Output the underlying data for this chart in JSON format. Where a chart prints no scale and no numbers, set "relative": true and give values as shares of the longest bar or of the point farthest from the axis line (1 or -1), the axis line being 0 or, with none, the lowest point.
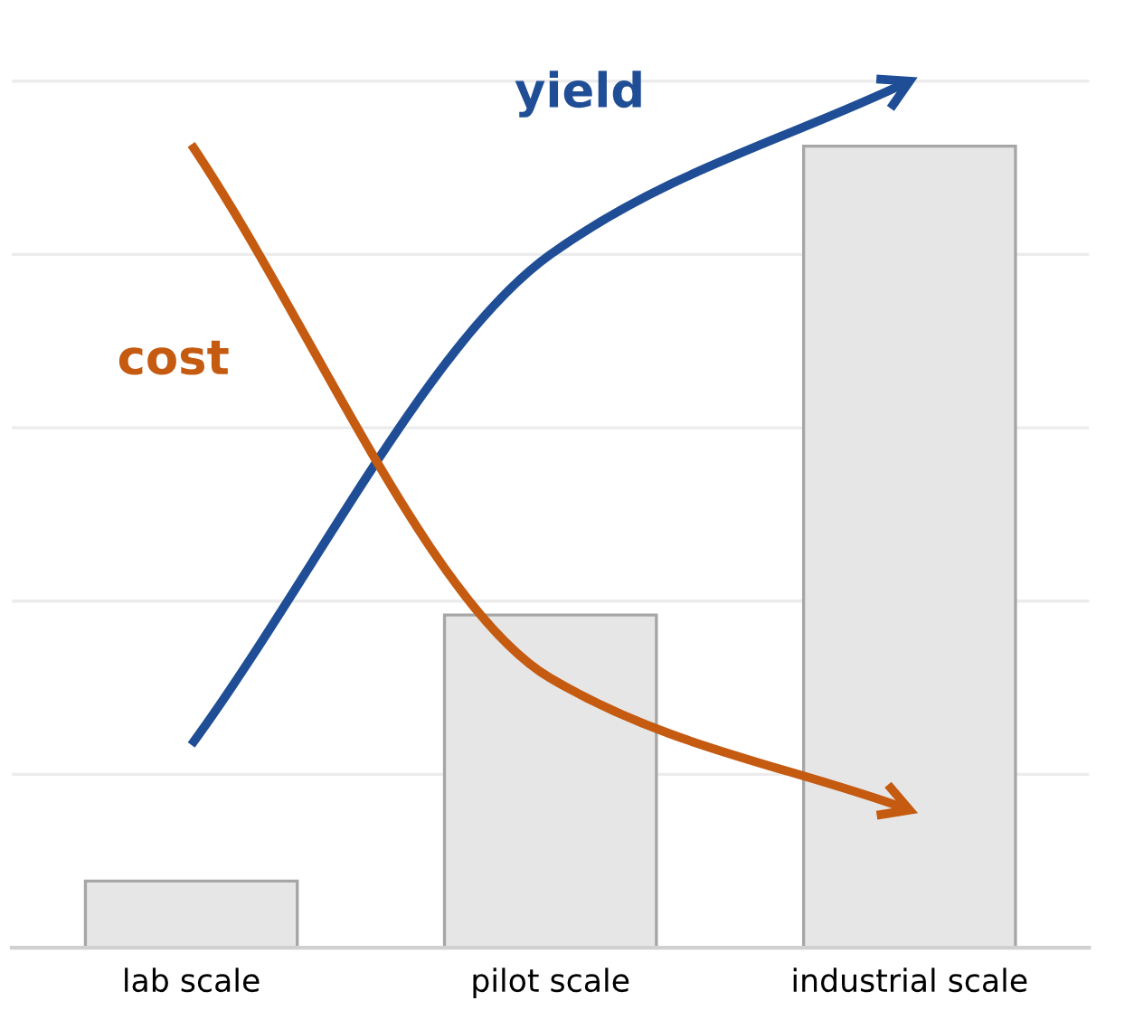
{
  "chart_data": {
    "type": "bar",
    "relative": true,
    "grid": "y",
    "legend": false,
    "categories": [
      "lab scale",
      "pilot scale",
      "industrial scale"
    ],
    "series": [
      {
        "type": "bar",
        "color": "#e6e6e6",
        "values": [
          0.077,
          0.384,
          0.925
        ]
      },
      {
        "type": "line",
        "name": "yield",
        "color": "#1f4e96",
        "values": [
          0.234,
          0.8,
          1.0
        ]
      },
      {
        "type": "line",
        "name": "cost",
        "color": "#c55a11",
        "values": [
          0.927,
          0.311,
          0.159
        ]
      }
    ]
  }
}
